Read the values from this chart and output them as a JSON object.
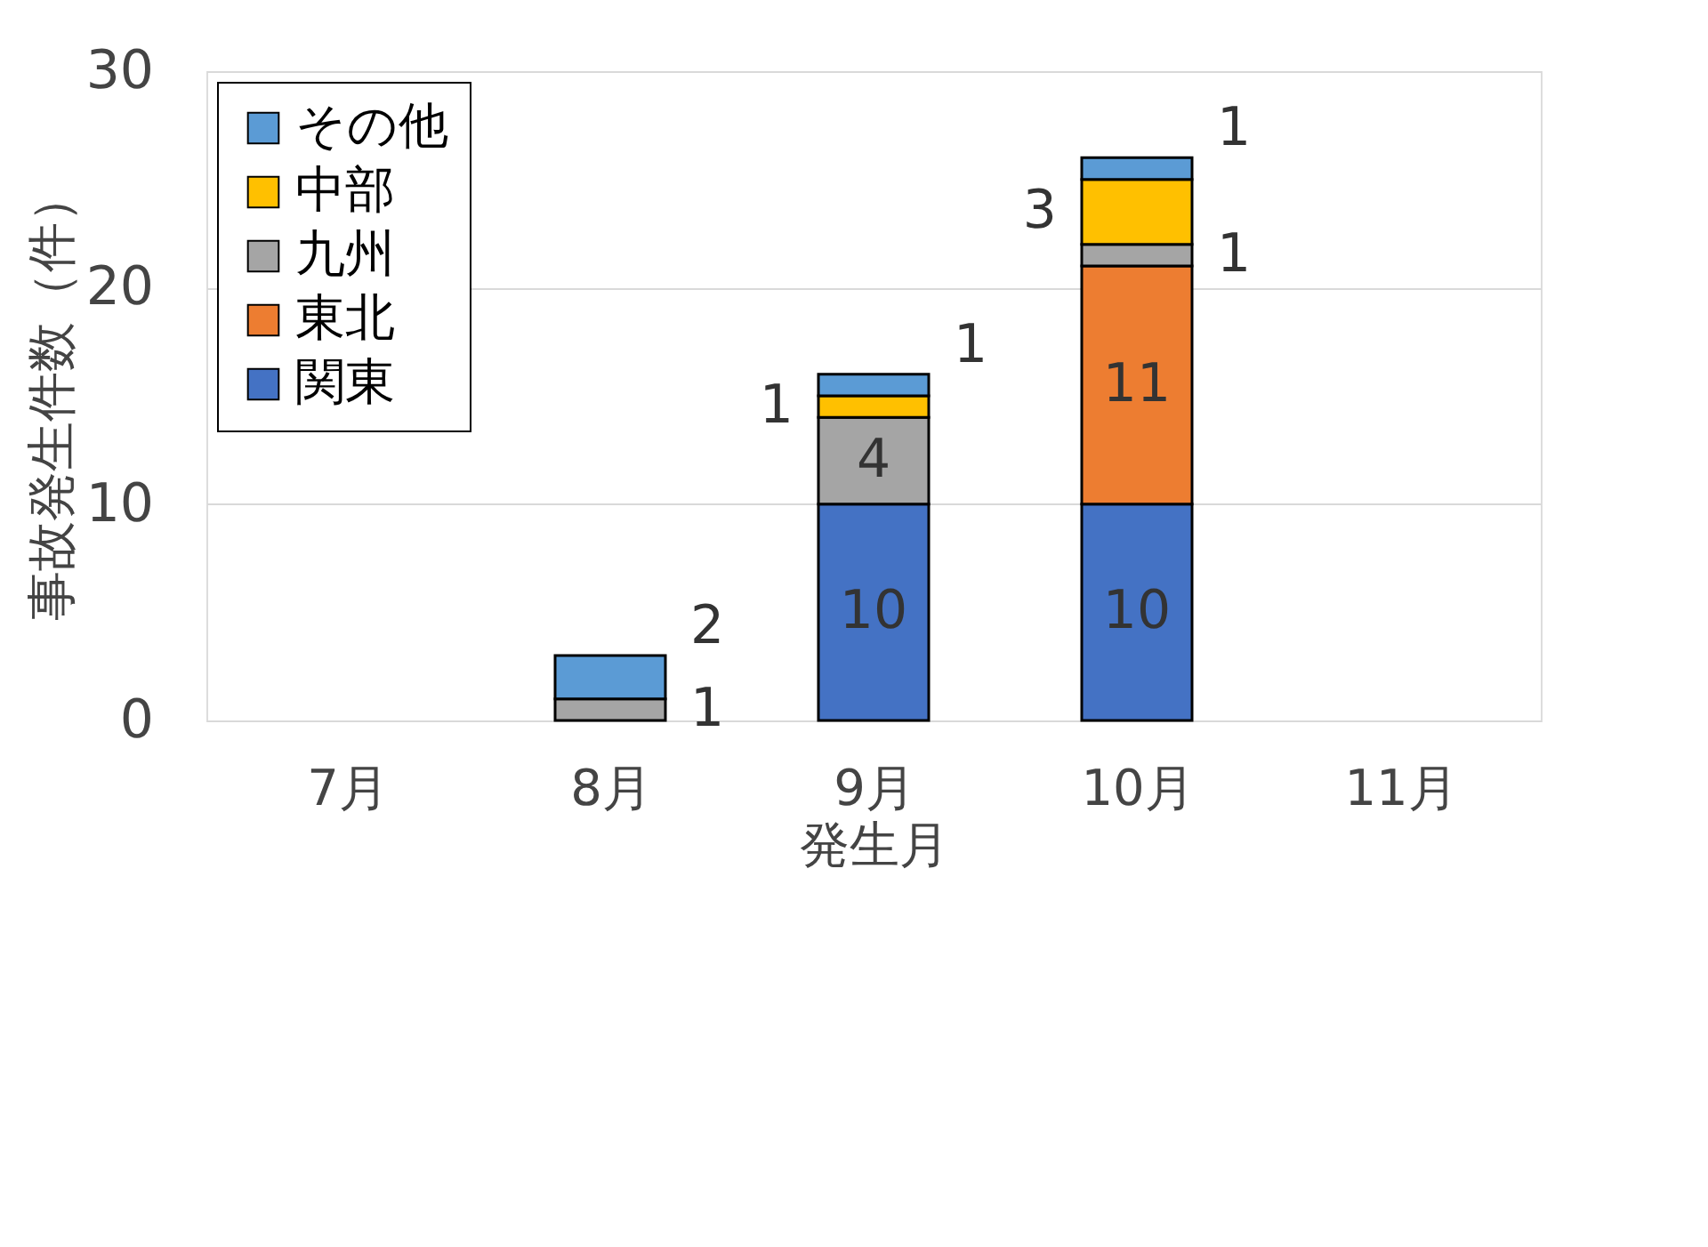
{
  "chart_data": {
    "type": "bar",
    "stacked": true,
    "xlabel": "発生月",
    "ylabel": "事故発生件数（件）",
    "categories": [
      "7月",
      "8月",
      "9月",
      "10月",
      "11月"
    ],
    "series": [
      {
        "name": "関東",
        "color": "#4472c4",
        "values": [
          null,
          null,
          10,
          10,
          null
        ]
      },
      {
        "name": "東北",
        "color": "#ed7d31",
        "values": [
          null,
          null,
          null,
          11,
          null
        ]
      },
      {
        "name": "九州",
        "color": "#a5a5a5",
        "values": [
          null,
          1,
          4,
          1,
          null
        ]
      },
      {
        "name": "中部",
        "color": "#ffc000",
        "values": [
          null,
          null,
          1,
          3,
          null
        ]
      },
      {
        "name": "その他",
        "color": "#5b9bd5",
        "values": [
          null,
          2,
          1,
          1,
          null
        ]
      }
    ],
    "ylim": [
      0,
      30
    ],
    "yticks": [
      0,
      10,
      20,
      30
    ],
    "grid": "y",
    "legend": "top left",
    "data_labels": true
  }
}
